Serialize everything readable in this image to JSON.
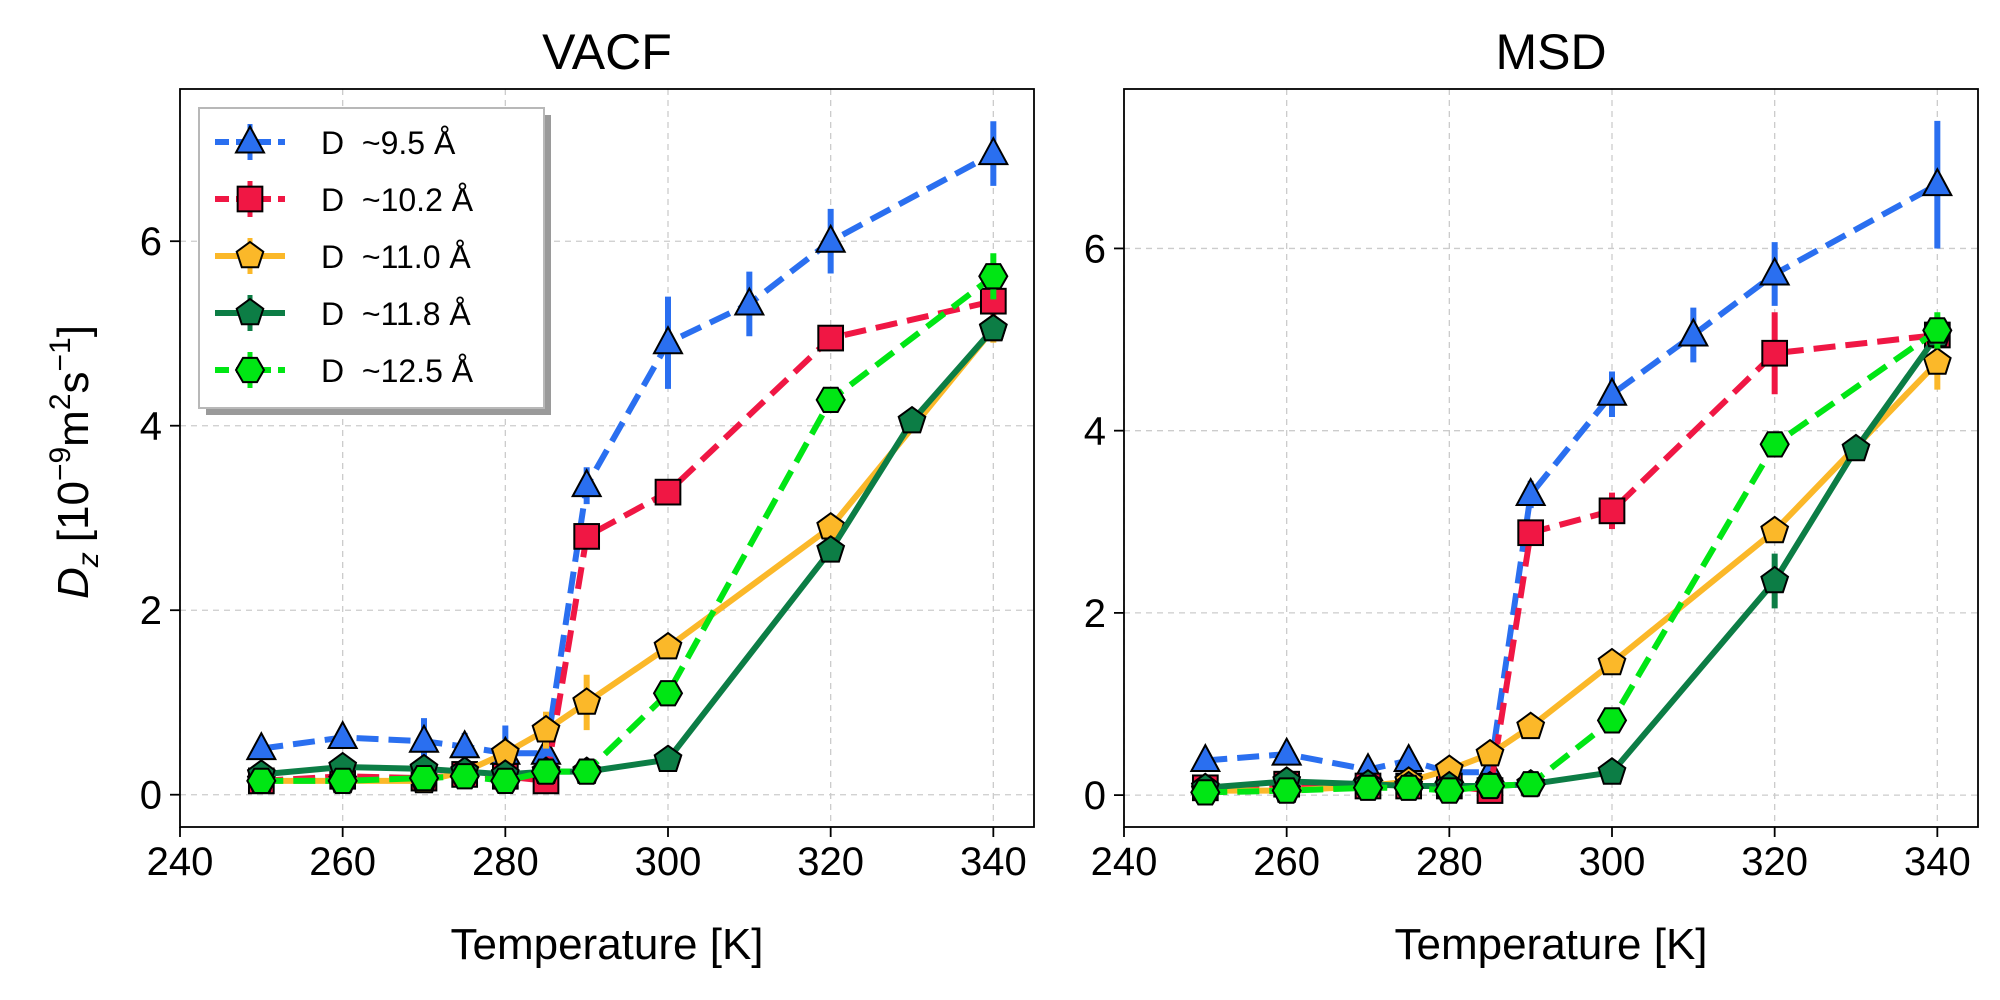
{
  "figure": {
    "ylabel_main": "D",
    "ylabel_sub": "z",
    "ylabel_units": "[10",
    "ylabel_exp": "−9",
    "ylabel_units2": "m",
    "ylabel_exp2": "2",
    "ylabel_units3": "s",
    "ylabel_exp3": "−1",
    "ylabel_close": "]"
  },
  "chart_data": [
    {
      "type": "line",
      "title": "VACF",
      "xlabel": "Temperature [K]",
      "ylabel": "D_z [10^-9 m^2 s^-1]",
      "xlim": [
        240,
        345
      ],
      "ylim": [
        -0.35,
        7.65
      ],
      "xticks": [
        240,
        260,
        280,
        300,
        320,
        340
      ],
      "yticks": [
        0,
        2,
        4,
        6
      ],
      "grid": true,
      "legend": "top-left",
      "series": [
        {
          "name": "D  ~9.5 Å",
          "color": "#2a6ff0",
          "linestyle": "dashed",
          "marker": "triangle",
          "x": [
            250,
            260,
            270,
            275,
            280,
            285,
            290,
            300,
            310,
            320,
            340
          ],
          "y": [
            0.5,
            0.62,
            0.58,
            0.52,
            0.45,
            0.45,
            3.35,
            4.9,
            5.32,
            6.0,
            6.95
          ],
          "err": [
            0.1,
            0.1,
            0.25,
            0.15,
            0.3,
            0.3,
            0.2,
            0.5,
            0.35,
            0.35,
            0.35
          ]
        },
        {
          "name": "D  ~10.2 Å",
          "color": "#f01744",
          "linestyle": "dashed",
          "marker": "square",
          "x": [
            250,
            260,
            270,
            275,
            280,
            285,
            290,
            300,
            320,
            340
          ],
          "y": [
            0.15,
            0.2,
            0.18,
            0.22,
            0.2,
            0.15,
            2.8,
            3.28,
            4.95,
            5.35
          ],
          "err": [
            0.05,
            0.05,
            0.05,
            0.05,
            0.05,
            0.05,
            0.1,
            0.1,
            0.1,
            0.15
          ]
        },
        {
          "name": "D  ~11.0 Å",
          "color": "#fbb829",
          "linestyle": "solid",
          "marker": "pentagon",
          "x": [
            250,
            260,
            270,
            275,
            280,
            285,
            290,
            300,
            320,
            340
          ],
          "y": [
            0.15,
            0.15,
            0.15,
            0.25,
            0.45,
            0.7,
            1.0,
            1.6,
            2.9,
            5.05
          ],
          "err": [
            0.05,
            0.05,
            0.05,
            0.05,
            0.15,
            0.2,
            0.3,
            0.1,
            0.1,
            0.15
          ]
        },
        {
          "name": "D  ~11.8 Å",
          "color": "#0c7d45",
          "linestyle": "solid",
          "marker": "pentagon",
          "x": [
            250,
            260,
            270,
            275,
            280,
            285,
            290,
            300,
            320,
            330,
            340
          ],
          "y": [
            0.22,
            0.3,
            0.28,
            0.25,
            0.22,
            0.25,
            0.25,
            0.38,
            2.65,
            4.05,
            5.05
          ],
          "err": [
            0.05,
            0.05,
            0.05,
            0.05,
            0.05,
            0.05,
            0.05,
            0.05,
            0.1,
            0.1,
            0.1
          ]
        },
        {
          "name": "D  ~12.5 Å",
          "color": "#00e614",
          "linestyle": "dashed",
          "marker": "hexagon",
          "x": [
            250,
            260,
            270,
            275,
            280,
            285,
            290,
            300,
            320,
            340
          ],
          "y": [
            0.15,
            0.15,
            0.18,
            0.2,
            0.15,
            0.25,
            0.25,
            1.1,
            4.28,
            5.62
          ],
          "err": [
            0.05,
            0.05,
            0.05,
            0.05,
            0.05,
            0.05,
            0.05,
            0.1,
            0.1,
            0.25
          ]
        }
      ]
    },
    {
      "type": "line",
      "title": "MSD",
      "xlabel": "Temperature [K]",
      "ylabel": "",
      "xlim": [
        240,
        345
      ],
      "ylim": [
        -0.35,
        7.75
      ],
      "xticks": [
        240,
        260,
        280,
        300,
        320,
        340
      ],
      "yticks": [
        0,
        2,
        4,
        6
      ],
      "grid": true,
      "series": [
        {
          "name": "D  ~9.5 Å",
          "color": "#2a6ff0",
          "linestyle": "dashed",
          "marker": "triangle",
          "x": [
            250,
            260,
            270,
            275,
            280,
            285,
            290,
            300,
            310,
            320,
            340
          ],
          "y": [
            0.38,
            0.45,
            0.28,
            0.38,
            0.25,
            0.25,
            3.3,
            4.4,
            5.05,
            5.72,
            6.7
          ],
          "err": [
            0.05,
            0.05,
            0.05,
            0.05,
            0.05,
            0.05,
            0.15,
            0.25,
            0.3,
            0.35,
            0.7
          ]
        },
        {
          "name": "D  ~10.2 Å",
          "color": "#f01744",
          "linestyle": "dashed",
          "marker": "square",
          "x": [
            250,
            260,
            270,
            275,
            280,
            285,
            290,
            300,
            320,
            340
          ],
          "y": [
            0.08,
            0.12,
            0.1,
            0.1,
            0.1,
            0.05,
            2.88,
            3.12,
            4.85,
            5.05
          ],
          "err": [
            0.05,
            0.05,
            0.05,
            0.05,
            0.05,
            0.05,
            0.1,
            0.2,
            0.45,
            0.2
          ]
        },
        {
          "name": "D  ~11.0 Å",
          "color": "#fbb829",
          "linestyle": "solid",
          "marker": "pentagon",
          "x": [
            250,
            260,
            270,
            275,
            280,
            285,
            290,
            300,
            320,
            340
          ],
          "y": [
            0.05,
            0.05,
            0.1,
            0.15,
            0.28,
            0.45,
            0.75,
            1.45,
            2.9,
            4.75
          ],
          "err": [
            0.05,
            0.05,
            0.05,
            0.05,
            0.05,
            0.1,
            0.1,
            0.1,
            0.1,
            0.3
          ]
        },
        {
          "name": "D  ~11.8 Å",
          "color": "#0c7d45",
          "linestyle": "solid",
          "marker": "pentagon",
          "x": [
            250,
            260,
            270,
            275,
            280,
            285,
            290,
            300,
            320,
            330,
            340
          ],
          "y": [
            0.08,
            0.15,
            0.12,
            0.1,
            0.1,
            0.1,
            0.12,
            0.25,
            2.35,
            3.8,
            5.05
          ],
          "err": [
            0.05,
            0.05,
            0.05,
            0.05,
            0.05,
            0.05,
            0.05,
            0.05,
            0.3,
            0.1,
            0.1
          ]
        },
        {
          "name": "D  ~12.5 Å",
          "color": "#00e614",
          "linestyle": "dashed",
          "marker": "hexagon",
          "x": [
            250,
            260,
            270,
            275,
            280,
            285,
            290,
            300,
            320,
            340
          ],
          "y": [
            0.03,
            0.05,
            0.08,
            0.08,
            0.05,
            0.1,
            0.12,
            0.82,
            3.85,
            5.1
          ],
          "err": [
            0.05,
            0.05,
            0.05,
            0.05,
            0.05,
            0.05,
            0.05,
            0.1,
            0.1,
            0.2
          ]
        }
      ]
    }
  ]
}
